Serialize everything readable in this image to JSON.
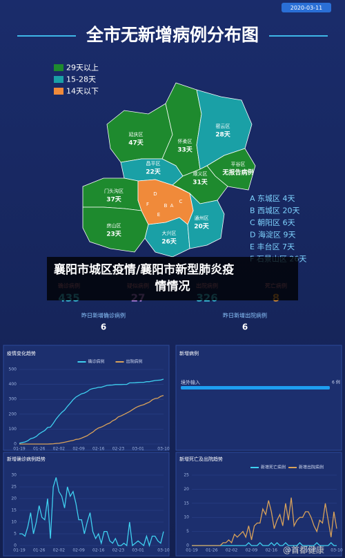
{
  "header": {
    "date": "2020-03-11",
    "title": "全市无新增病例分布图"
  },
  "map": {
    "legend": [
      {
        "label": "29天以上",
        "color": "#1e8a2e"
      },
      {
        "label": "15-28天",
        "color": "#1aa0a6"
      },
      {
        "label": "14天以下",
        "color": "#f08a3a"
      }
    ],
    "districts": [
      {
        "name": "延庆区",
        "days": "47天"
      },
      {
        "name": "怀柔区",
        "days": "33天"
      },
      {
        "name": "密云区",
        "days": "28天"
      },
      {
        "name": "昌平区",
        "days": "22天"
      },
      {
        "name": "平谷区",
        "days": "无报告病例"
      },
      {
        "name": "顺义区",
        "days": "31天"
      },
      {
        "name": "门头沟区",
        "days": "37天"
      },
      {
        "name": "房山区",
        "days": "23天"
      },
      {
        "name": "大兴区",
        "days": "26天"
      },
      {
        "name": "通州区",
        "days": "20天"
      }
    ],
    "core_letters": [
      "F",
      "D",
      "B",
      "A",
      "C",
      "E"
    ],
    "core_list": [
      "A 东城区 4天",
      "B 西城区 20天",
      "C 朝阳区 6天",
      "D 海淀区 9天",
      "E 丰台区 7天",
      "F 石景山区 26天"
    ]
  },
  "caption": [
    "襄阳市城区疫情/襄阳市新型肺炎疫",
    "情情况"
  ],
  "stats": [
    {
      "label": "确诊病例",
      "value": 435
    },
    {
      "label": "疑似病例",
      "value": 27
    },
    {
      "label": "出院病例",
      "value": 326
    },
    {
      "label": "死亡病例",
      "value": 8
    }
  ],
  "yesterday": [
    {
      "label": "昨日新增确诊病例",
      "value": 6
    },
    {
      "label": "昨日新增出院病例",
      "value": 6
    }
  ],
  "watermark": "@首都健康",
  "chart_data": [
    {
      "type": "line",
      "title": "疫情变化趋势",
      "ylim": [
        0,
        500
      ],
      "yticks": [
        0,
        100,
        200,
        300,
        400,
        500
      ],
      "categories": [
        "01-19",
        null,
        null,
        null,
        null,
        null,
        null,
        "01-26",
        null,
        null,
        null,
        null,
        null,
        null,
        "02-02",
        null,
        null,
        null,
        null,
        null,
        null,
        "02-09",
        null,
        null,
        null,
        null,
        null,
        null,
        "02-16",
        null,
        null,
        null,
        null,
        null,
        null,
        "02-23",
        null,
        null,
        null,
        null,
        null,
        null,
        "03-01",
        null,
        null,
        null,
        null,
        null,
        null,
        null,
        null,
        "03-10"
      ],
      "series": [
        {
          "name": "确诊病例",
          "color": "#3fd0f0",
          "values": [
            5,
            10,
            14,
            22,
            36,
            41,
            51,
            68,
            80,
            91,
            111,
            114,
            139,
            168,
            191,
            212,
            228,
            253,
            274,
            297,
            315,
            326,
            337,
            342,
            352,
            366,
            372,
            375,
            380,
            381,
            387,
            393,
            395,
            396,
            399,
            399,
            399,
            400,
            400,
            410,
            410,
            411,
            413,
            414,
            414,
            418,
            418,
            422,
            426,
            428,
            429,
            435
          ]
        },
        {
          "name": "出院病例",
          "color": "#d9a25a",
          "values": [
            0,
            0,
            0,
            0,
            0,
            0,
            0,
            0,
            0,
            0,
            0,
            1,
            2,
            4,
            5,
            9,
            12,
            16,
            21,
            24,
            31,
            33,
            40,
            48,
            56,
            69,
            80,
            96,
            108,
            114,
            123,
            134,
            141,
            156,
            165,
            182,
            189,
            198,
            208,
            218,
            230,
            242,
            252,
            259,
            264,
            273,
            281,
            296,
            305,
            308,
            320,
            326
          ]
        }
      ]
    },
    {
      "type": "hbar",
      "title": "新增病例",
      "categories": [
        "境外输入"
      ],
      "values": [
        6
      ],
      "value_labels": [
        "6 例"
      ],
      "color": "#1e9ef0"
    },
    {
      "type": "line",
      "title": "新增确诊病例趋势",
      "ylim": [
        0,
        30
      ],
      "yticks": [
        0,
        5,
        10,
        15,
        20,
        25,
        30
      ],
      "categories": [
        "01-19",
        null,
        null,
        null,
        null,
        null,
        null,
        "01-26",
        null,
        null,
        null,
        null,
        null,
        null,
        "02-02",
        null,
        null,
        null,
        null,
        null,
        null,
        "02-09",
        null,
        null,
        null,
        null,
        null,
        null,
        "02-16",
        null,
        null,
        null,
        null,
        null,
        null,
        "02-23",
        null,
        null,
        null,
        null,
        null,
        null,
        "03-01",
        null,
        null,
        null,
        null,
        null,
        null,
        null,
        null,
        "03-10"
      ],
      "series": [
        {
          "name": "新增确诊病例",
          "color": "#3fd0f0",
          "values": [
            5,
            5,
            4,
            8,
            14,
            5,
            10,
            17,
            12,
            11,
            20,
            3,
            25,
            29,
            23,
            21,
            16,
            25,
            21,
            23,
            18,
            11,
            11,
            5,
            10,
            14,
            6,
            3,
            5,
            1,
            6,
            6,
            2,
            1,
            3,
            0,
            0,
            1,
            0,
            10,
            0,
            1,
            2,
            1,
            0,
            4,
            0,
            4,
            4,
            2,
            1,
            6
          ]
        }
      ],
      "legend": false
    },
    {
      "type": "line",
      "title": "新增死亡及出院趋势",
      "ylim": [
        0,
        25
      ],
      "yticks": [
        0,
        5,
        10,
        15,
        20,
        25
      ],
      "categories": [
        "01-19",
        null,
        null,
        null,
        null,
        null,
        null,
        "01-26",
        null,
        null,
        null,
        null,
        null,
        null,
        "02-02",
        null,
        null,
        null,
        null,
        null,
        null,
        "02-09",
        null,
        null,
        null,
        null,
        null,
        null,
        "02-16",
        null,
        null,
        null,
        null,
        null,
        null,
        "02-23",
        null,
        null,
        null,
        null,
        null,
        null,
        "03-01",
        null,
        null,
        null,
        null,
        null,
        null,
        null,
        null,
        "03-10"
      ],
      "series": [
        {
          "name": "新增死亡病例",
          "color": "#3fd0f0",
          "values": [
            0,
            0,
            0,
            0,
            0,
            0,
            0,
            0,
            0,
            0,
            0,
            0,
            0,
            0,
            0,
            0,
            0,
            0,
            0,
            0,
            1,
            0,
            0,
            0,
            1,
            0,
            0,
            0,
            1,
            0,
            1,
            0,
            0,
            1,
            0,
            0,
            0,
            0,
            1,
            0,
            0,
            0,
            0,
            0,
            1,
            0,
            0,
            0,
            0,
            1,
            0,
            0
          ]
        },
        {
          "name": "新增出院病例",
          "color": "#d9a25a",
          "values": [
            0,
            0,
            0,
            0,
            0,
            0,
            0,
            0,
            0,
            0,
            0,
            1,
            1,
            2,
            1,
            4,
            3,
            4,
            5,
            3,
            7,
            2,
            7,
            8,
            8,
            13,
            11,
            16,
            12,
            6,
            9,
            11,
            7,
            15,
            9,
            17,
            7,
            9,
            10,
            10,
            12,
            12,
            10,
            7,
            5,
            9,
            8,
            15,
            9,
            3,
            12,
            6
          ]
        }
      ]
    }
  ]
}
